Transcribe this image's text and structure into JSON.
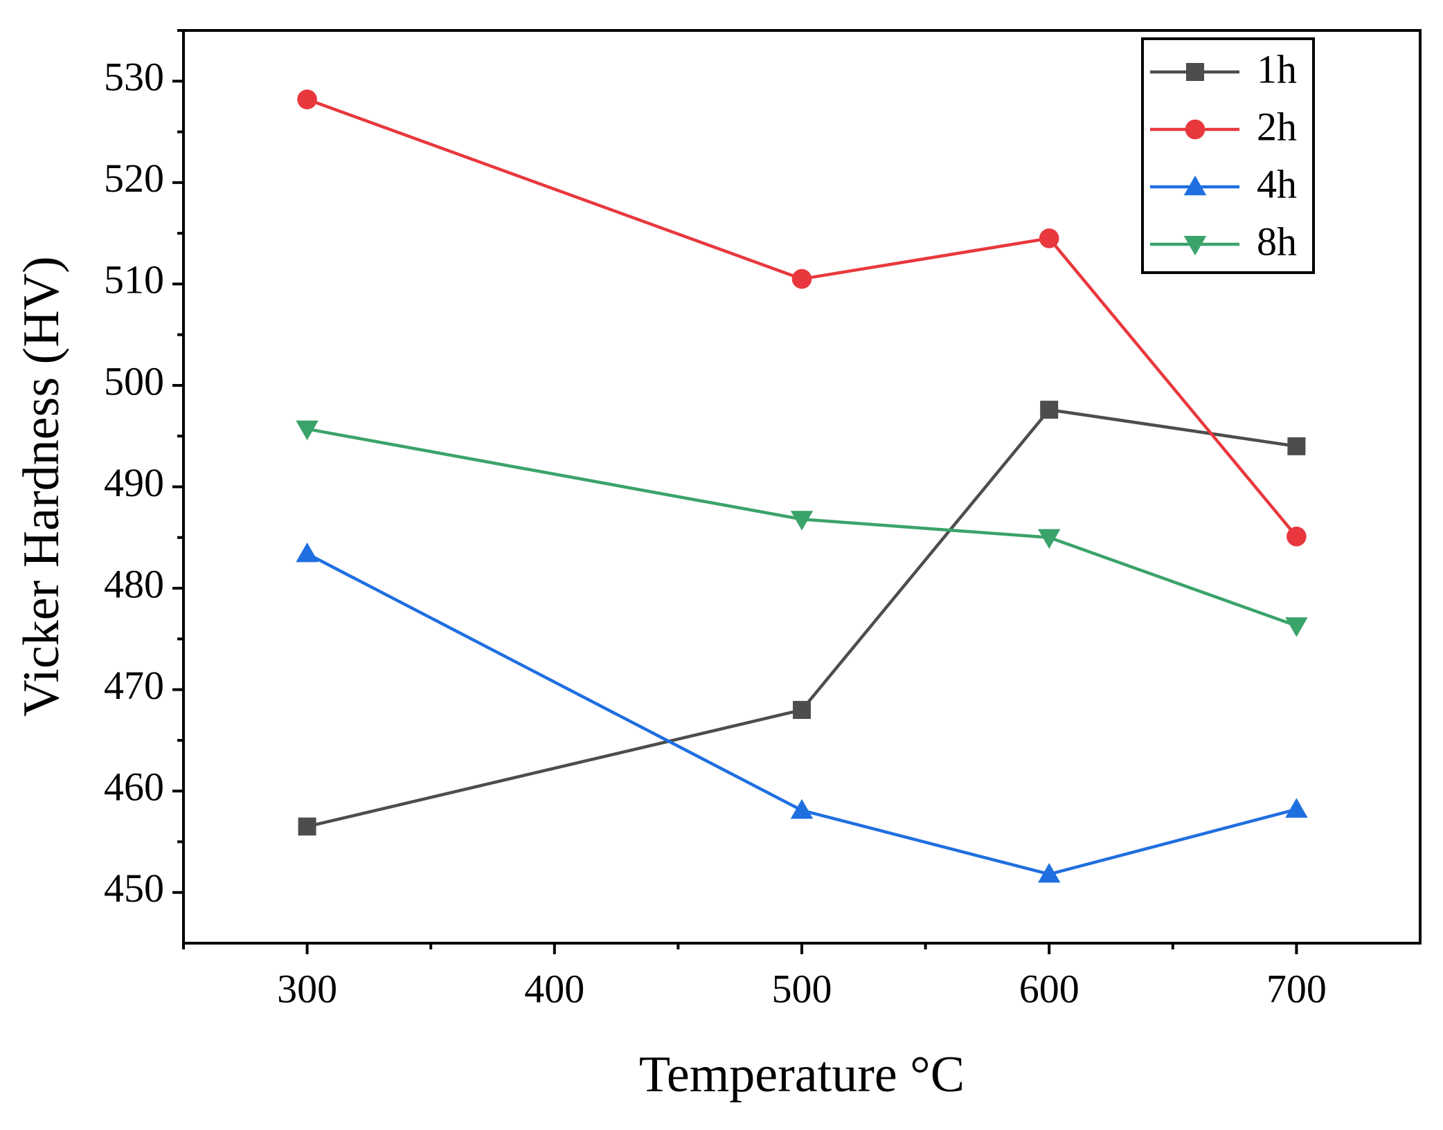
{
  "chart_data": {
    "type": "line",
    "xlabel": "Temperature °C",
    "ylabel": "Vicker Hardness (HV)",
    "x": [
      300,
      500,
      600,
      700
    ],
    "series": [
      {
        "name": "1h",
        "color": "#4d4d4d",
        "marker": "square",
        "values": [
          456.5,
          468,
          497.6,
          494
        ]
      },
      {
        "name": "2h",
        "color": "#e8383d",
        "marker": "circle",
        "values": [
          528.2,
          510.5,
          514.5,
          485.1
        ]
      },
      {
        "name": "4h",
        "color": "#1f6fe0",
        "marker": "triangle-up",
        "values": [
          483.4,
          458.1,
          451.8,
          458.2
        ]
      },
      {
        "name": "8h",
        "color": "#3aa36a",
        "marker": "triangle-down",
        "values": [
          495.7,
          486.8,
          485,
          476.3
        ]
      }
    ],
    "xlim": [
      250,
      750
    ],
    "xticks": [
      300,
      400,
      500,
      600,
      700
    ],
    "ylim": [
      445,
      535
    ],
    "yticks": [
      450,
      460,
      470,
      480,
      490,
      500,
      510,
      520,
      530
    ],
    "grid": false,
    "legend": "upper right"
  }
}
